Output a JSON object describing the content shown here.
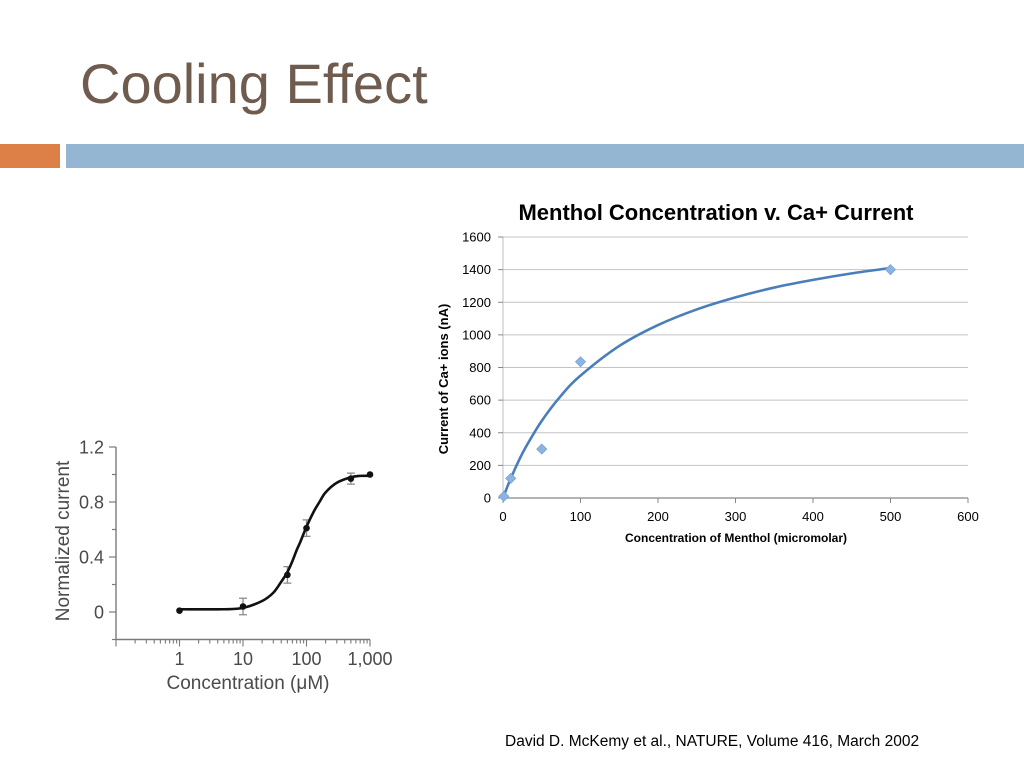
{
  "slide": {
    "title": "Cooling Effect",
    "citation": "David D. McKemy et al., NATURE, Volume 416, March 2002",
    "colors": {
      "title_text": "#705c4f",
      "accent_block": "#dd8047",
      "header_band": "#94b6d2"
    }
  },
  "chart_data": [
    {
      "type": "scatter",
      "xlabel": "Concentration (μM)",
      "ylabel": "Normalized current",
      "xscale": "log",
      "xlim": [
        0.1,
        1000
      ],
      "ylim": [
        -0.2,
        1.2
      ],
      "xticks": [
        1,
        10,
        100,
        1000
      ],
      "xtick_labels": [
        "1",
        "10",
        "100",
        "1,000"
      ],
      "yticks": [
        0,
        0.4,
        0.8,
        1.2
      ],
      "ytick_labels": [
        "0",
        "0.4",
        "0.8",
        "1.2"
      ],
      "grid": "off",
      "points": [
        {
          "x": 1,
          "y": 0.01,
          "err": 0
        },
        {
          "x": 10,
          "y": 0.04,
          "err": 0.06
        },
        {
          "x": 50,
          "y": 0.27,
          "err": 0.06
        },
        {
          "x": 100,
          "y": 0.61,
          "err": 0.06
        },
        {
          "x": 500,
          "y": 0.97,
          "err": 0.04
        },
        {
          "x": 1000,
          "y": 1.0,
          "err": 0
        }
      ],
      "curve": [
        [
          1,
          0.02
        ],
        [
          5,
          0.02
        ],
        [
          10,
          0.03
        ],
        [
          20,
          0.08
        ],
        [
          30,
          0.14
        ],
        [
          40,
          0.22
        ],
        [
          50,
          0.29
        ],
        [
          60,
          0.37
        ],
        [
          70,
          0.45
        ],
        [
          80,
          0.51
        ],
        [
          100,
          0.62
        ],
        [
          130,
          0.73
        ],
        [
          160,
          0.8
        ],
        [
          200,
          0.87
        ],
        [
          300,
          0.94
        ],
        [
          500,
          0.98
        ],
        [
          700,
          0.99
        ],
        [
          1000,
          0.99
        ]
      ],
      "colors": {
        "markers": "#111111",
        "curve": "#111111",
        "error_bars": "#8c8c8c",
        "axis_text": "#4a4a4a"
      }
    },
    {
      "type": "scatter",
      "title": "Menthol Concentration v. Ca+ Current",
      "xlabel": "Concentration of Menthol (micromolar)",
      "ylabel": "Current of Ca+ ions (nA)",
      "xlim": [
        0,
        600
      ],
      "ylim": [
        0,
        1600
      ],
      "xticks": [
        0,
        100,
        200,
        300,
        400,
        500,
        600
      ],
      "xtick_labels": [
        "0",
        "100",
        "200",
        "300",
        "400",
        "500",
        "600"
      ],
      "yticks": [
        0,
        200,
        400,
        600,
        800,
        1000,
        1200,
        1400,
        1600
      ],
      "ytick_labels": [
        "0",
        "200",
        "400",
        "600",
        "800",
        "1000",
        "1200",
        "1400",
        "1600"
      ],
      "grid": "horizontal",
      "points": [
        {
          "x": 1,
          "y": 10
        },
        {
          "x": 10,
          "y": 120
        },
        {
          "x": 50,
          "y": 300
        },
        {
          "x": 100,
          "y": 835
        },
        {
          "x": 500,
          "y": 1400
        }
      ],
      "trendline": [
        [
          1,
          13
        ],
        [
          5,
          62
        ],
        [
          10,
          120
        ],
        [
          20,
          225
        ],
        [
          30,
          317
        ],
        [
          50,
          473
        ],
        [
          75,
          628
        ],
        [
          100,
          750
        ],
        [
          150,
          932
        ],
        [
          200,
          1060
        ],
        [
          250,
          1156
        ],
        [
          300,
          1230
        ],
        [
          350,
          1290
        ],
        [
          400,
          1337
        ],
        [
          450,
          1377
        ],
        [
          500,
          1410
        ]
      ],
      "colors": {
        "points": "#8db3e2",
        "trendline": "#4a7ebb",
        "gridlines": "#c4c4c4",
        "axis_text": "#000000"
      }
    }
  ]
}
